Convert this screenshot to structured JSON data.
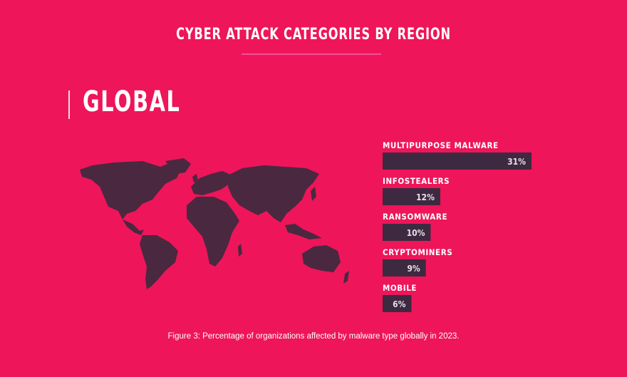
{
  "chart_data": {
    "type": "bar",
    "orientation": "horizontal",
    "title": "CYBER ATTACK CATEGORIES BY REGION",
    "subtitle": "GLOBAL",
    "categories": [
      "MULTIPURPOSE MALWARE",
      "INFOSTEALERS",
      "RANSOMWARE",
      "CRYPTOMINERS",
      "MOBILE"
    ],
    "values": [
      31,
      12,
      10,
      9,
      6
    ],
    "value_labels": [
      "31%",
      "12%",
      "10%",
      "9%",
      "6%"
    ],
    "unit": "%",
    "grid": false,
    "caption": "Figure 3: Percentage of organizations affected by malware type globally in 2023.",
    "colors": {
      "background": "#ee155a",
      "bar": "#3d2a40",
      "map": "#4a2840",
      "text": "#ffffff"
    }
  }
}
